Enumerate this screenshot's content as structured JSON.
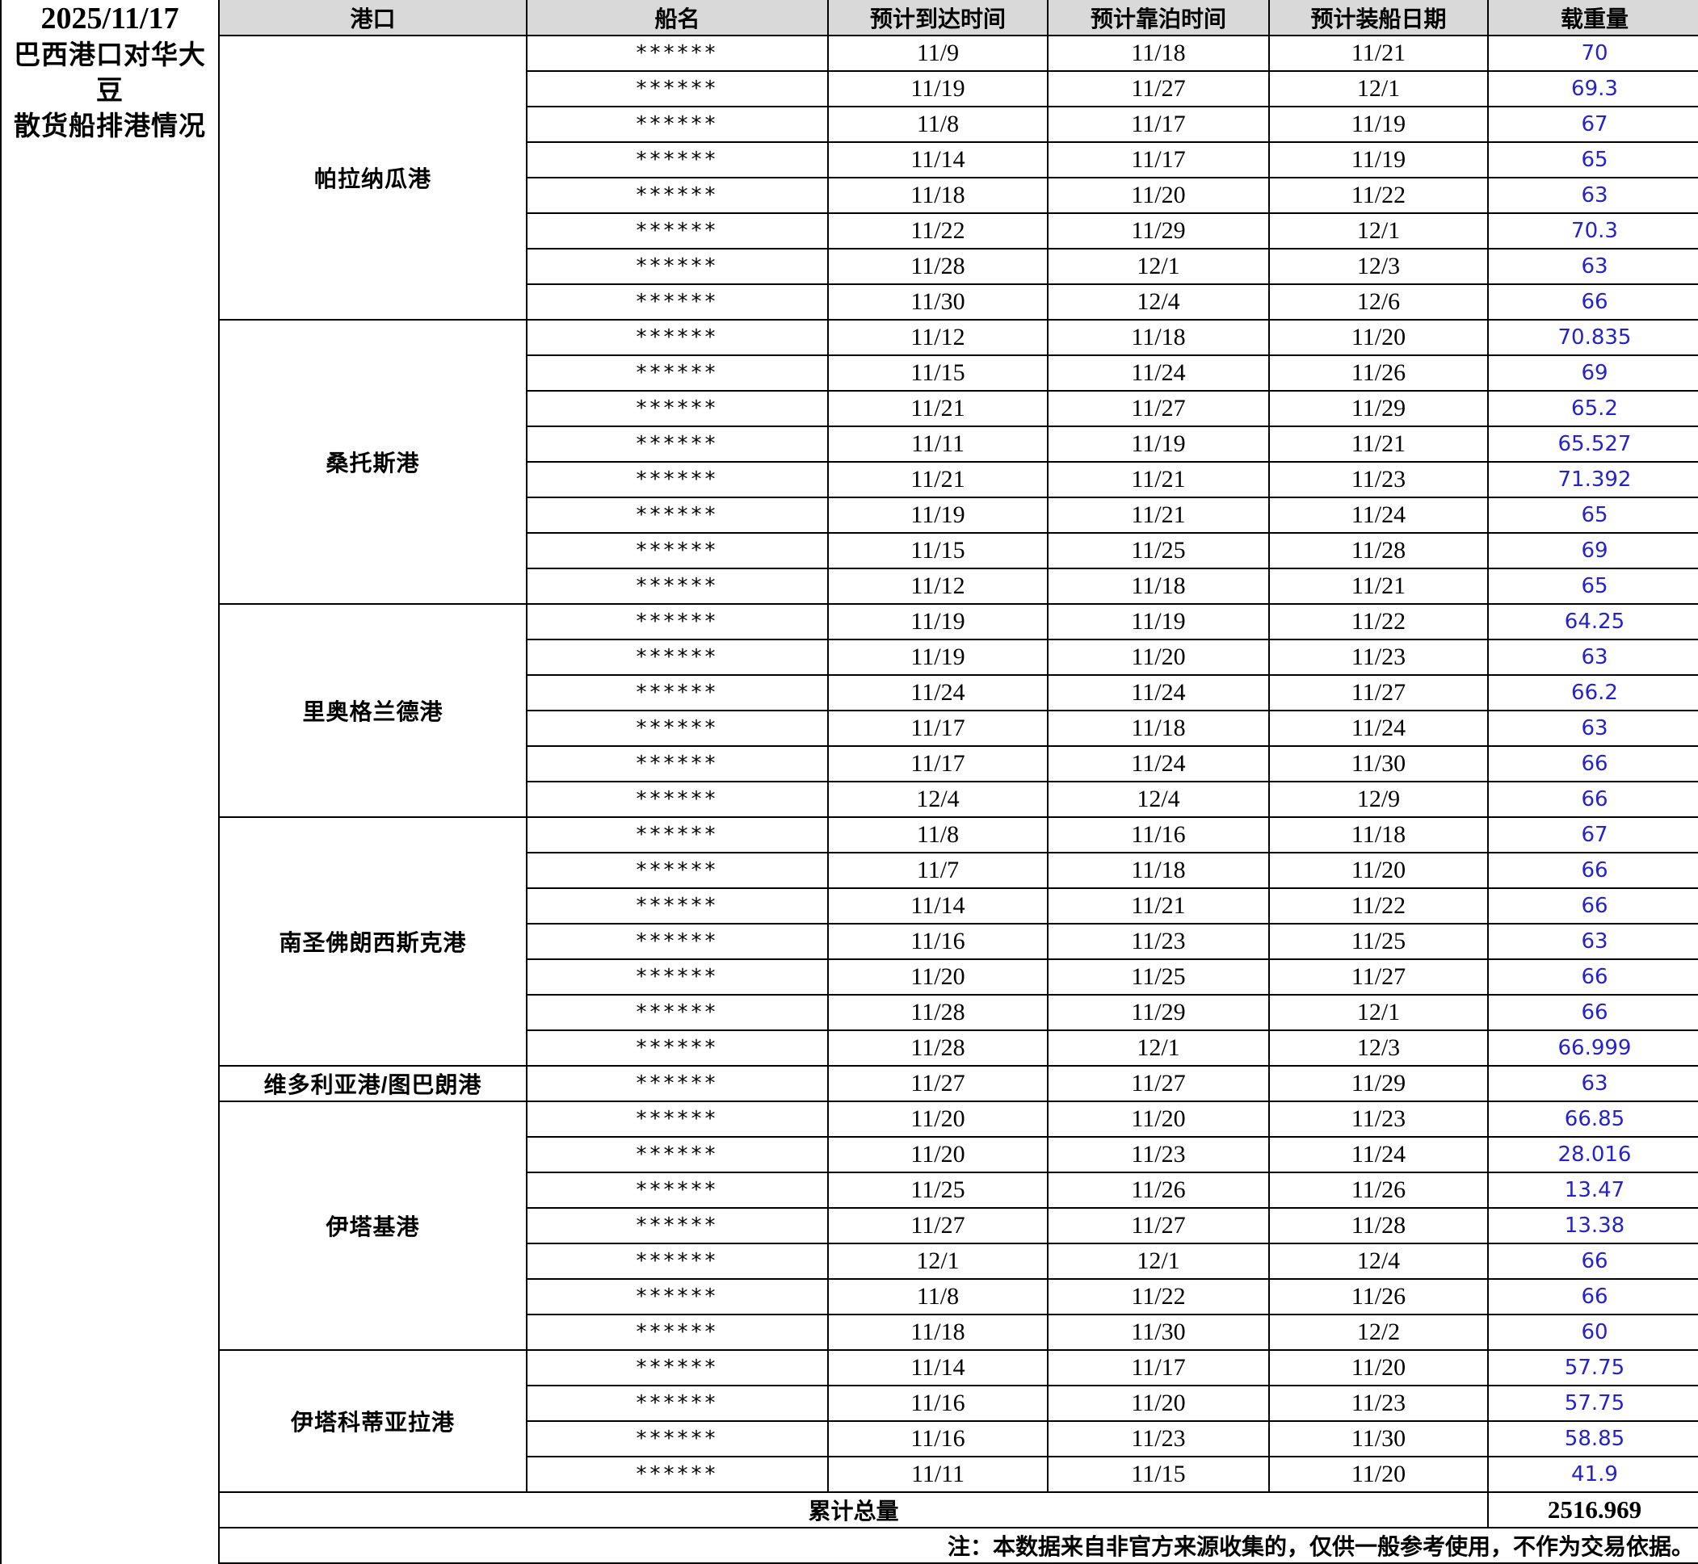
{
  "meta": {
    "date": "2025/11/17",
    "title_line1": "巴西港口对华大豆",
    "title_line2": "散货船排港情况"
  },
  "columns": {
    "port": "港口",
    "ship": "船名",
    "eta": "预计到达时间",
    "berth": "预计靠泊时间",
    "loading": "预计装船日期",
    "dwt": "载重量"
  },
  "colors": {
    "header_bg": "#d9d9d9",
    "dwt_text": "#2323cd",
    "border": "#000000"
  },
  "sections": [
    {
      "port": "帕拉纳瓜港",
      "rows": [
        {
          "ship": "******",
          "eta": "11/9",
          "berth": "11/18",
          "loading": "11/21",
          "dwt": "70"
        },
        {
          "ship": "******",
          "eta": "11/19",
          "berth": "11/27",
          "loading": "12/1",
          "dwt": "69.3"
        },
        {
          "ship": "******",
          "eta": "11/8",
          "berth": "11/17",
          "loading": "11/19",
          "dwt": "67"
        },
        {
          "ship": "******",
          "eta": "11/14",
          "berth": "11/17",
          "loading": "11/19",
          "dwt": "65"
        },
        {
          "ship": "******",
          "eta": "11/18",
          "berth": "11/20",
          "loading": "11/22",
          "dwt": "63"
        },
        {
          "ship": "******",
          "eta": "11/22",
          "berth": "11/29",
          "loading": "12/1",
          "dwt": "70.3"
        },
        {
          "ship": "******",
          "eta": "11/28",
          "berth": "12/1",
          "loading": "12/3",
          "dwt": "63"
        },
        {
          "ship": "******",
          "eta": "11/30",
          "berth": "12/4",
          "loading": "12/6",
          "dwt": "66"
        }
      ]
    },
    {
      "port": "桑托斯港",
      "rows": [
        {
          "ship": "******",
          "eta": "11/12",
          "berth": "11/18",
          "loading": "11/20",
          "dwt": "70.835"
        },
        {
          "ship": "******",
          "eta": "11/15",
          "berth": "11/24",
          "loading": "11/26",
          "dwt": "69"
        },
        {
          "ship": "******",
          "eta": "11/21",
          "berth": "11/27",
          "loading": "11/29",
          "dwt": "65.2"
        },
        {
          "ship": "******",
          "eta": "11/11",
          "berth": "11/19",
          "loading": "11/21",
          "dwt": "65.527"
        },
        {
          "ship": "******",
          "eta": "11/21",
          "berth": "11/21",
          "loading": "11/23",
          "dwt": "71.392"
        },
        {
          "ship": "******",
          "eta": "11/19",
          "berth": "11/21",
          "loading": "11/24",
          "dwt": "65"
        },
        {
          "ship": "******",
          "eta": "11/15",
          "berth": "11/25",
          "loading": "11/28",
          "dwt": "69"
        },
        {
          "ship": "******",
          "eta": "11/12",
          "berth": "11/18",
          "loading": "11/21",
          "dwt": "65"
        }
      ]
    },
    {
      "port": "里奥格兰德港",
      "rows": [
        {
          "ship": "******",
          "eta": "11/19",
          "berth": "11/19",
          "loading": "11/22",
          "dwt": "64.25"
        },
        {
          "ship": "******",
          "eta": "11/19",
          "berth": "11/20",
          "loading": "11/23",
          "dwt": "63"
        },
        {
          "ship": "******",
          "eta": "11/24",
          "berth": "11/24",
          "loading": "11/27",
          "dwt": "66.2"
        },
        {
          "ship": "******",
          "eta": "11/17",
          "berth": "11/18",
          "loading": "11/24",
          "dwt": "63"
        },
        {
          "ship": "******",
          "eta": "11/17",
          "berth": "11/24",
          "loading": "11/30",
          "dwt": "66"
        },
        {
          "ship": "******",
          "eta": "12/4",
          "berth": "12/4",
          "loading": "12/9",
          "dwt": "66"
        }
      ]
    },
    {
      "port": "南圣佛朗西斯克港",
      "rows": [
        {
          "ship": "******",
          "eta": "11/8",
          "berth": "11/16",
          "loading": "11/18",
          "dwt": "67"
        },
        {
          "ship": "******",
          "eta": "11/7",
          "berth": "11/18",
          "loading": "11/20",
          "dwt": "66"
        },
        {
          "ship": "******",
          "eta": "11/14",
          "berth": "11/21",
          "loading": "11/22",
          "dwt": "66"
        },
        {
          "ship": "******",
          "eta": "11/16",
          "berth": "11/23",
          "loading": "11/25",
          "dwt": "63"
        },
        {
          "ship": "******",
          "eta": "11/20",
          "berth": "11/25",
          "loading": "11/27",
          "dwt": "66"
        },
        {
          "ship": "******",
          "eta": "11/28",
          "berth": "11/29",
          "loading": "12/1",
          "dwt": "66"
        },
        {
          "ship": "******",
          "eta": "11/28",
          "berth": "12/1",
          "loading": "12/3",
          "dwt": "66.999"
        }
      ]
    },
    {
      "port": "维多利亚港/图巴朗港",
      "rows": [
        {
          "ship": "******",
          "eta": "11/27",
          "berth": "11/27",
          "loading": "11/29",
          "dwt": "63"
        }
      ]
    },
    {
      "port": "伊塔基港",
      "rows": [
        {
          "ship": "******",
          "eta": "11/20",
          "berth": "11/20",
          "loading": "11/23",
          "dwt": "66.85"
        },
        {
          "ship": "******",
          "eta": "11/20",
          "berth": "11/23",
          "loading": "11/24",
          "dwt": "28.016"
        },
        {
          "ship": "******",
          "eta": "11/25",
          "berth": "11/26",
          "loading": "11/26",
          "dwt": "13.47"
        },
        {
          "ship": "******",
          "eta": "11/27",
          "berth": "11/27",
          "loading": "11/28",
          "dwt": "13.38"
        },
        {
          "ship": "******",
          "eta": "12/1",
          "berth": "12/1",
          "loading": "12/4",
          "dwt": "66"
        },
        {
          "ship": "******",
          "eta": "11/8",
          "berth": "11/22",
          "loading": "11/26",
          "dwt": "66"
        },
        {
          "ship": "******",
          "eta": "11/18",
          "berth": "11/30",
          "loading": "12/2",
          "dwt": "60"
        }
      ]
    },
    {
      "port": "伊塔科蒂亚拉港",
      "rows": [
        {
          "ship": "******",
          "eta": "11/14",
          "berth": "11/17",
          "loading": "11/20",
          "dwt": "57.75"
        },
        {
          "ship": "******",
          "eta": "11/16",
          "berth": "11/20",
          "loading": "11/23",
          "dwt": "57.75"
        },
        {
          "ship": "******",
          "eta": "11/16",
          "berth": "11/23",
          "loading": "11/30",
          "dwt": "58.85"
        },
        {
          "ship": "******",
          "eta": "11/11",
          "berth": "11/15",
          "loading": "11/20",
          "dwt": "41.9"
        }
      ]
    }
  ],
  "footer": {
    "total_label": "累计总量",
    "total_value": "2516.969",
    "note": "注：本数据来自非官方来源收集的，仅供一般参考使用，不作为交易依据。"
  }
}
